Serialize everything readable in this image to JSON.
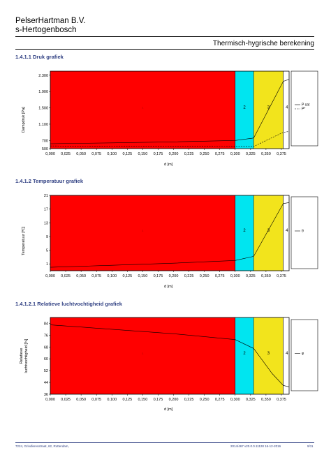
{
  "header": {
    "company_line1": "PelserHartman B.V.",
    "company_line2": "s-Hertogenbosch",
    "doc_title": "Thermisch-hygrische berekening"
  },
  "sections": [
    {
      "id": "druk",
      "title": "1.4.1.1 Druk  grafiek"
    },
    {
      "id": "temp",
      "title": "1.4.1.2 Temperatuur  grafiek"
    },
    {
      "id": "rv",
      "title": "1.4.1.2.1 Relatieve  luchtvochtigheid  grafiek"
    }
  ],
  "colors": {
    "layer1": "#ff0000",
    "layer2": "#00e5f0",
    "layer3": "#f2e41c",
    "layer4": "#ffffff",
    "accent": "#2f3f82"
  },
  "chart_data": [
    {
      "type": "line",
      "ylabel": "Dampdruk [Pa]",
      "xlabel": "d [m]",
      "xlim": [
        0,
        0.3875
      ],
      "ylim": [
        500,
        2400
      ],
      "xticks": [
        "0,000",
        "0,025",
        "0,050",
        "0,075",
        "0,100",
        "0,125",
        "0,150",
        "0,175",
        "0,200",
        "0,225",
        "0,250",
        "0,275",
        "0,300",
        "0,325",
        "0,350",
        "0,375"
      ],
      "yticks": [
        "500",
        "700",
        "1.100",
        "1.500",
        "1.900",
        "2.300"
      ],
      "layers": [
        {
          "label": "1",
          "from": 0,
          "to": 0.3
        },
        {
          "label": "2",
          "from": 0.3,
          "to": 0.33
        },
        {
          "label": "3",
          "from": 0.33,
          "to": 0.378
        },
        {
          "label": "4",
          "from": 0.378,
          "to": 0.3875
        }
      ],
      "series": [
        {
          "name": "P sat",
          "style": "solid",
          "x": [
            0,
            0.1,
            0.2,
            0.3,
            0.33,
            0.378,
            0.3875
          ],
          "y": [
            620,
            640,
            665,
            700,
            760,
            2150,
            2200
          ]
        },
        {
          "name": "P*",
          "style": "dashed",
          "x": [
            0,
            0.1,
            0.2,
            0.3,
            0.33,
            0.378,
            0.3875
          ],
          "y": [
            565,
            560,
            555,
            553,
            553,
            900,
            920
          ]
        }
      ],
      "legend": [
        "P sat",
        "P*"
      ]
    },
    {
      "type": "line",
      "ylabel": "Temperatuur [ºC]",
      "xlabel": "d [m]",
      "xlim": [
        0,
        0.3875
      ],
      "ylim": [
        -1,
        21
      ],
      "xticks": [
        "0,000",
        "0,025",
        "0,050",
        "0,075",
        "0,100",
        "0,125",
        "0,150",
        "0,175",
        "0,200",
        "0,225",
        "0,250",
        "0,275",
        "0,300",
        "0,325",
        "0,350",
        "0,375"
      ],
      "yticks": [
        "1",
        "5",
        "9",
        "13",
        "17",
        "21"
      ],
      "layers": [
        {
          "label": "1",
          "from": 0,
          "to": 0.3
        },
        {
          "label": "2",
          "from": 0.3,
          "to": 0.33
        },
        {
          "label": "3",
          "from": 0.33,
          "to": 0.378
        },
        {
          "label": "4",
          "from": 0.378,
          "to": 0.3875
        }
      ],
      "series": [
        {
          "name": "θ",
          "style": "solid",
          "x": [
            0,
            0.1,
            0.2,
            0.3,
            0.33,
            0.378,
            0.3875
          ],
          "y": [
            0,
            0.6,
            1.2,
            2.0,
            3.2,
            18.6,
            18.9
          ]
        }
      ],
      "legend": [
        "θ"
      ]
    },
    {
      "type": "line",
      "ylabel": "Relatieve luchtvochtigheid [%]",
      "xlabel": "d [m]",
      "xlim": [
        0,
        0.3875
      ],
      "ylim": [
        36,
        88
      ],
      "xticks": [
        "0,000",
        "0,025",
        "0,050",
        "0,075",
        "0,100",
        "0,125",
        "0,150",
        "0,175",
        "0,200",
        "0,225",
        "0,250",
        "0,275",
        "0,300",
        "0,325",
        "0,350",
        "0,375"
      ],
      "yticks": [
        "36",
        "44",
        "52",
        "60",
        "68",
        "76",
        "84"
      ],
      "layers": [
        {
          "label": "1",
          "from": 0,
          "to": 0.3
        },
        {
          "label": "2",
          "from": 0.3,
          "to": 0.33
        },
        {
          "label": "3",
          "from": 0.33,
          "to": 0.378
        },
        {
          "label": "4",
          "from": 0.378,
          "to": 0.3875
        }
      ],
      "series": [
        {
          "name": "φ",
          "style": "solid",
          "x": [
            0,
            0.1,
            0.2,
            0.3,
            0.33,
            0.36,
            0.378,
            0.3875
          ],
          "y": [
            83,
            80,
            77,
            73,
            67,
            50,
            42,
            41
          ]
        }
      ],
      "legend": [
        "φ"
      ]
    }
  ],
  "footer": {
    "left": "7224, Grindleresstraat, 62, Rotterdam,",
    "middle": "2014/467   v20.0.0.11128   16-12-2016",
    "page": "9/11"
  }
}
